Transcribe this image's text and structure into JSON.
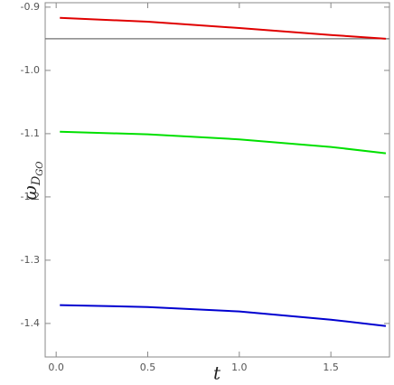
{
  "chart_data": {
    "type": "line",
    "xlabel": "t",
    "ylabel": {
      "symbol": "ω",
      "sub": "D",
      "subsub": "GO"
    },
    "x": [
      0.02,
      0.5,
      1.0,
      1.5,
      1.8
    ],
    "series": [
      {
        "color": "#e00000",
        "values": [
          -0.917,
          -0.923,
          -0.933,
          -0.944,
          -0.95
        ]
      },
      {
        "color": "#00e000",
        "values": [
          -1.097,
          -1.101,
          -1.109,
          -1.121,
          -1.131
        ]
      },
      {
        "color": "#0000d0",
        "values": [
          -1.371,
          -1.374,
          -1.381,
          -1.394,
          -1.404
        ]
      }
    ],
    "hlines": [
      {
        "value": -0.95,
        "color": "#707070"
      }
    ],
    "xlim": [
      -0.06,
      1.82
    ],
    "ylim": [
      -1.453,
      -0.893
    ],
    "xticks": [
      {
        "value": 0,
        "label": "0.0"
      },
      0.5,
      {
        "value": 1,
        "label": "1.0"
      },
      1.5
    ],
    "yticks": [
      -0.9,
      {
        "value": -1,
        "label": "-1.0"
      },
      -1.1,
      -1.2,
      -1.3,
      -1.4
    ],
    "frame_ticks_all_sides": true
  }
}
